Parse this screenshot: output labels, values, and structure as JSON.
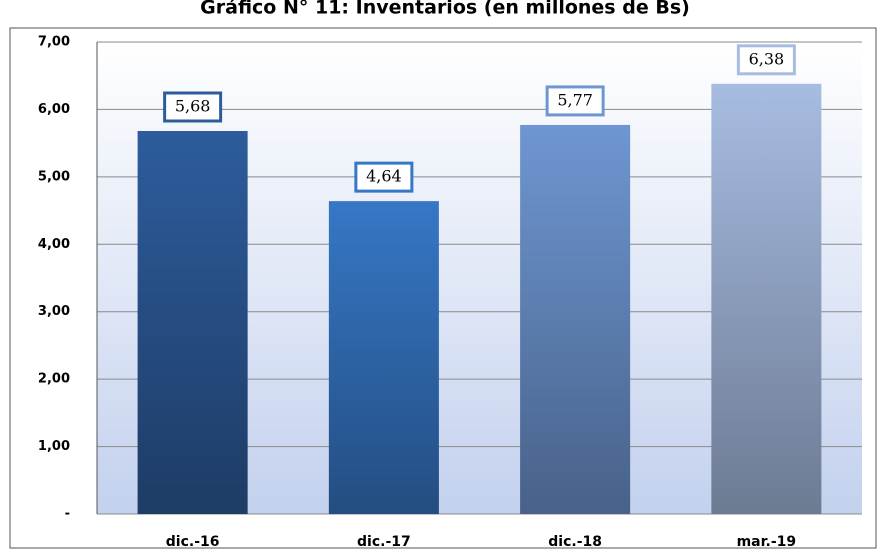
{
  "chart_data": {
    "type": "bar",
    "title": "Gráfico N° 11: Inventarios (en millones de Bs)",
    "categories": [
      "dic.-16",
      "dic.-17",
      "dic.-18",
      "mar.-19"
    ],
    "values": [
      5.68,
      4.64,
      5.77,
      6.38
    ],
    "value_labels": [
      "5,68",
      "4,64",
      "5,77",
      "6,38"
    ],
    "colors": [
      "#2d5c9c",
      "#3677c6",
      "#6e96d2",
      "#a7bce1"
    ],
    "ylim": [
      0,
      7
    ],
    "yticks": [
      {
        "value": 0,
        "label": "-"
      },
      {
        "value": 1,
        "label": "1,00"
      },
      {
        "value": 2,
        "label": "2,00"
      },
      {
        "value": 3,
        "label": "3,00"
      },
      {
        "value": 4,
        "label": "4,00"
      },
      {
        "value": 5,
        "label": "5,00"
      },
      {
        "value": 6,
        "label": "6,00"
      },
      {
        "value": 7,
        "label": "7,00"
      }
    ],
    "grid": true
  }
}
